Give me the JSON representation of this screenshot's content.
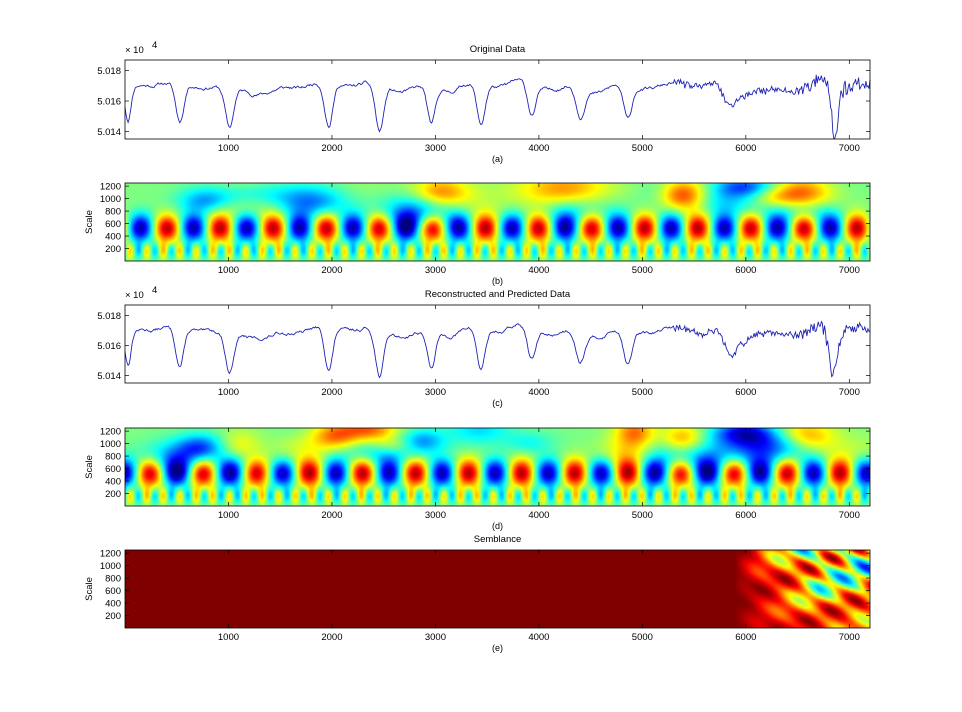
{
  "figure": {
    "colors": {
      "line": "#1f24b5",
      "frame": "#000000"
    }
  },
  "chart_data": [
    {
      "type": "line",
      "title": "Original Data",
      "caption": "(a)",
      "exponent": "× 10",
      "exponent_power": "4",
      "xlim": [
        0,
        7200
      ],
      "ylim": [
        50135,
        50187
      ],
      "xticks": [
        "1000",
        "2000",
        "3000",
        "4000",
        "5000",
        "6000",
        "7000"
      ],
      "yticks": [
        "5.018",
        "5.016",
        "5.014"
      ],
      "ytick_values": [
        50180,
        50160,
        50140
      ],
      "series_seed": 11,
      "dips": [
        {
          "x": 30,
          "depth": 22,
          "width": 40
        },
        {
          "x": 530,
          "depth": 25,
          "width": 55
        },
        {
          "x": 1010,
          "depth": 26,
          "width": 55
        },
        {
          "x": 1970,
          "depth": 28,
          "width": 55
        },
        {
          "x": 2460,
          "depth": 30,
          "width": 55
        },
        {
          "x": 2960,
          "depth": 24,
          "width": 50
        },
        {
          "x": 3440,
          "depth": 27,
          "width": 55
        },
        {
          "x": 3930,
          "depth": 20,
          "width": 55
        },
        {
          "x": 4400,
          "depth": 18,
          "width": 55
        },
        {
          "x": 4860,
          "depth": 22,
          "width": 55
        },
        {
          "x": 5850,
          "depth": 12,
          "width": 90
        },
        {
          "x": 6860,
          "depth": 35,
          "width": 40
        }
      ]
    },
    {
      "type": "heatmap",
      "caption": "(b)",
      "ylabel": "Scale",
      "xlim": [
        0,
        7200
      ],
      "ylim": [
        0,
        1250
      ],
      "xticks": [
        "1000",
        "2000",
        "3000",
        "4000",
        "5000",
        "6000",
        "7000"
      ],
      "yticks": [
        "1200",
        "1000",
        "800",
        "600",
        "400",
        "200"
      ],
      "ytick_values": [
        1200,
        1000,
        800,
        600,
        400,
        200
      ],
      "seed": 3
    },
    {
      "type": "line",
      "title": "Reconstructed and Predicted Data",
      "caption": "(c)",
      "exponent": "× 10",
      "exponent_power": "4",
      "xlim": [
        0,
        7200
      ],
      "ylim": [
        50135,
        50187
      ],
      "xticks": [
        "1000",
        "2000",
        "3000",
        "4000",
        "5000",
        "6000",
        "7000"
      ],
      "yticks": [
        "5.018",
        "5.016",
        "5.014"
      ],
      "ytick_values": [
        50180,
        50160,
        50140
      ],
      "series_seed": 11,
      "dips": [
        {
          "x": 30,
          "depth": 22,
          "width": 40
        },
        {
          "x": 530,
          "depth": 25,
          "width": 55
        },
        {
          "x": 1010,
          "depth": 26,
          "width": 55
        },
        {
          "x": 1970,
          "depth": 28,
          "width": 55
        },
        {
          "x": 2460,
          "depth": 30,
          "width": 55
        },
        {
          "x": 2960,
          "depth": 24,
          "width": 50
        },
        {
          "x": 3440,
          "depth": 27,
          "width": 55
        },
        {
          "x": 3930,
          "depth": 20,
          "width": 55
        },
        {
          "x": 4400,
          "depth": 18,
          "width": 55
        },
        {
          "x": 4860,
          "depth": 22,
          "width": 55
        },
        {
          "x": 5850,
          "depth": 14,
          "width": 90
        },
        {
          "x": 6840,
          "depth": 30,
          "width": 55
        }
      ]
    },
    {
      "type": "heatmap",
      "caption": "(d)",
      "ylabel": "Scale",
      "xlim": [
        0,
        7200
      ],
      "ylim": [
        0,
        1250
      ],
      "xticks": [
        "1000",
        "2000",
        "3000",
        "4000",
        "5000",
        "6000",
        "7000"
      ],
      "yticks": [
        "1200",
        "1000",
        "800",
        "600",
        "400",
        "200"
      ],
      "ytick_values": [
        1200,
        1000,
        800,
        600,
        400,
        200
      ],
      "seed": 5
    },
    {
      "type": "heatmap",
      "title": "Semblance",
      "caption": "(e)",
      "ylabel": "Scale",
      "xlim": [
        0,
        7200
      ],
      "ylim": [
        0,
        1250
      ],
      "xticks": [
        "1000",
        "2000",
        "3000",
        "4000",
        "5000",
        "6000",
        "7000"
      ],
      "yticks": [
        "1200",
        "1000",
        "800",
        "600",
        "400",
        "200"
      ],
      "ytick_values": [
        1200,
        1000,
        800,
        600,
        400,
        200
      ],
      "semblance_onset_x": 5900
    }
  ]
}
